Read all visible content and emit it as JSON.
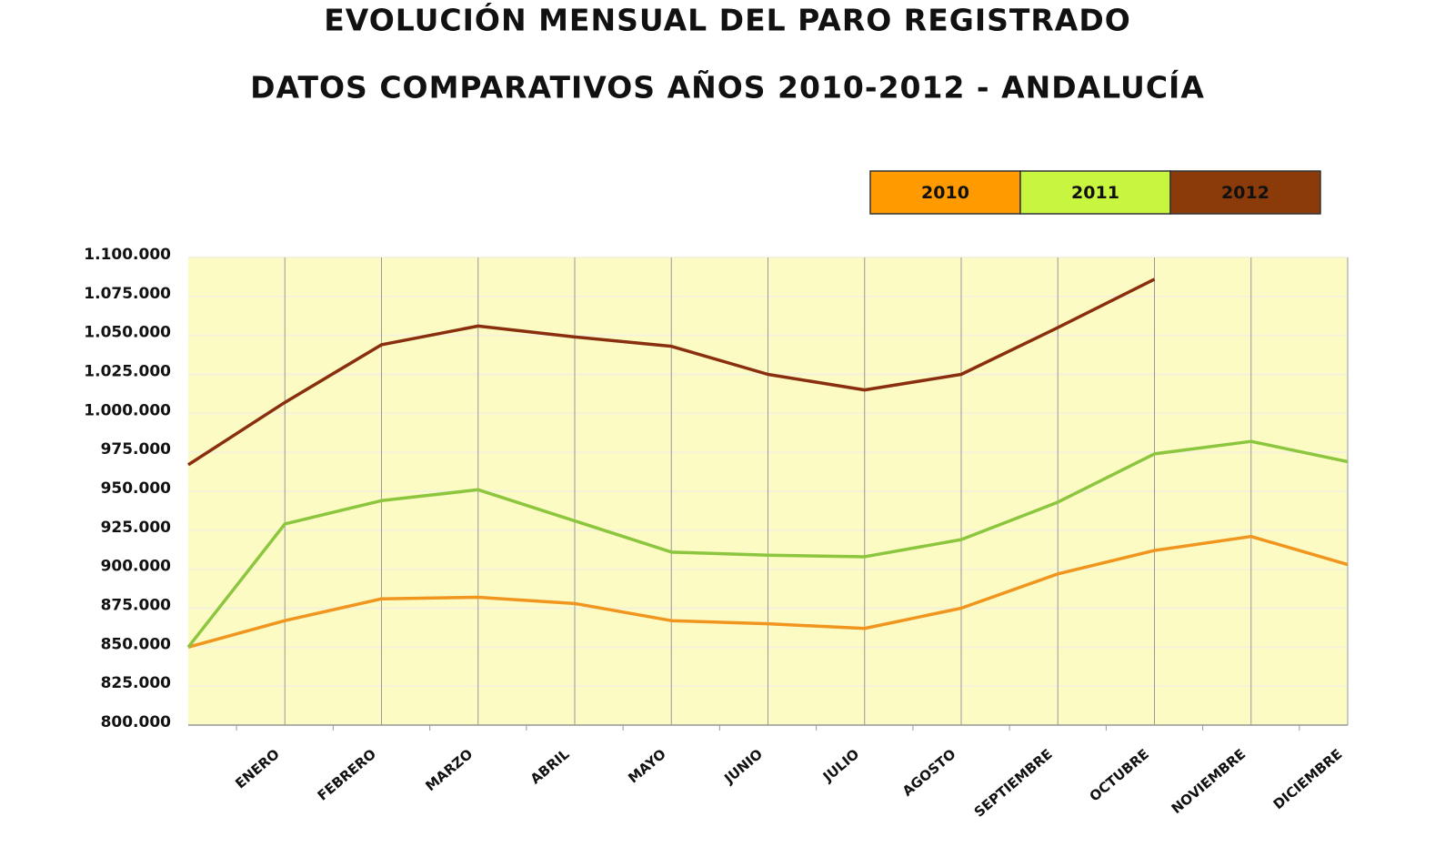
{
  "chart_data": {
    "type": "line",
    "title": "EVOLUCIÓN MENSUAL DEL PARO REGISTRADO",
    "subtitle": "DATOS COMPARATIVOS AÑOS 2010-2012 - ANDALUCÍA",
    "categories": [
      null,
      "ENERO",
      "FEBRERO",
      "MARZO",
      "ABRIL",
      "MAYO",
      "JUNIO",
      "JULIO",
      "AGOSTO",
      "SEPTIEMBRE",
      "OCTUBRE",
      "NOVIEMBRE",
      "DICIEMBRE"
    ],
    "series": [
      {
        "name": "2010",
        "color": "#f0951e",
        "values": [
          850000,
          867000,
          881000,
          882000,
          878000,
          867000,
          865000,
          862000,
          875000,
          897000,
          912000,
          921000,
          903000
        ]
      },
      {
        "name": "2011",
        "color": "#8cc63e",
        "values": [
          850000,
          929000,
          944000,
          951000,
          931000,
          911000,
          909000,
          908000,
          919000,
          943000,
          974000,
          982000,
          969000
        ]
      },
      {
        "name": "2012",
        "color": "#8a2f0e",
        "values": [
          967000,
          1007000,
          1044000,
          1056000,
          1049000,
          1043000,
          1025000,
          1015000,
          1025000,
          1055000,
          1086000,
          null,
          null
        ]
      }
    ],
    "legend_colors": [
      "#ff9a00",
      "#c8f53f",
      "#8b3a0a"
    ],
    "ylim": [
      800000,
      1100000
    ],
    "yticks": [
      {
        "value": 800000,
        "label": "800.000"
      },
      {
        "value": 825000,
        "label": "825.000"
      },
      {
        "value": 850000,
        "label": "850.000"
      },
      {
        "value": 875000,
        "label": "875.000"
      },
      {
        "value": 900000,
        "label": "900.000"
      },
      {
        "value": 925000,
        "label": "925.000"
      },
      {
        "value": 950000,
        "label": "950.000"
      },
      {
        "value": 975000,
        "label": "975.000"
      },
      {
        "value": 1000000,
        "label": "1.000.000"
      },
      {
        "value": 1025000,
        "label": "1.025.000"
      },
      {
        "value": 1050000,
        "label": "1.050.000"
      },
      {
        "value": 1075000,
        "label": "1.075.000"
      },
      {
        "value": 1100000,
        "label": "1.100.000"
      }
    ],
    "grid": true
  }
}
